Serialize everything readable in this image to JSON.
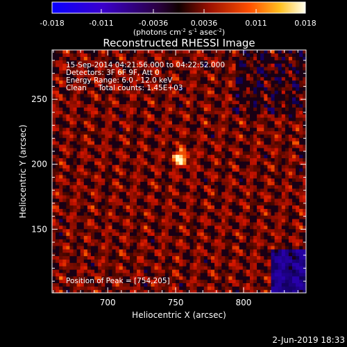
{
  "colorbar": {
    "ticks": [
      "-0.018",
      "-0.011",
      "-0.0036",
      "0.0036",
      "0.011",
      "0.018"
    ],
    "units_main": "(photons cm",
    "units_sup1": "-2",
    "units_mid": " s",
    "units_sup2": "-1",
    "units_mid2": " asec",
    "units_sup3": "-2",
    "units_end": ")"
  },
  "chart_data": {
    "type": "heatmap",
    "title": "Reconstructed RHESSI Image",
    "xlabel": "Heliocentric X (arcsec)",
    "ylabel": "Heliocentric Y (arcsec)",
    "xlim": [
      659,
      846
    ],
    "ylim": [
      101,
      288
    ],
    "x_ticks": [
      "700",
      "750",
      "800"
    ],
    "y_ticks": [
      "150",
      "200",
      "250"
    ],
    "x_tick_values": [
      700,
      750,
      800
    ],
    "y_tick_values": [
      150,
      200,
      250
    ],
    "colorbar_range": [
      -0.018,
      0.018
    ],
    "peak": [
      754,
      205
    ],
    "annotations": [
      "15-Sep-2014 04:21:56.000 to 04:22:52.000",
      "Detectors: 3F 6F 9F, Att 0",
      "Energy Range: 6.0 - 12.0 keV",
      "Clean     Total counts: 1.45E+03"
    ],
    "peak_label": "Position of Peak = [754,205]"
  },
  "footer": {
    "date": "2-Jun-2019 18:33"
  },
  "colors": {
    "background": "#000000",
    "text": "#ffffff"
  }
}
